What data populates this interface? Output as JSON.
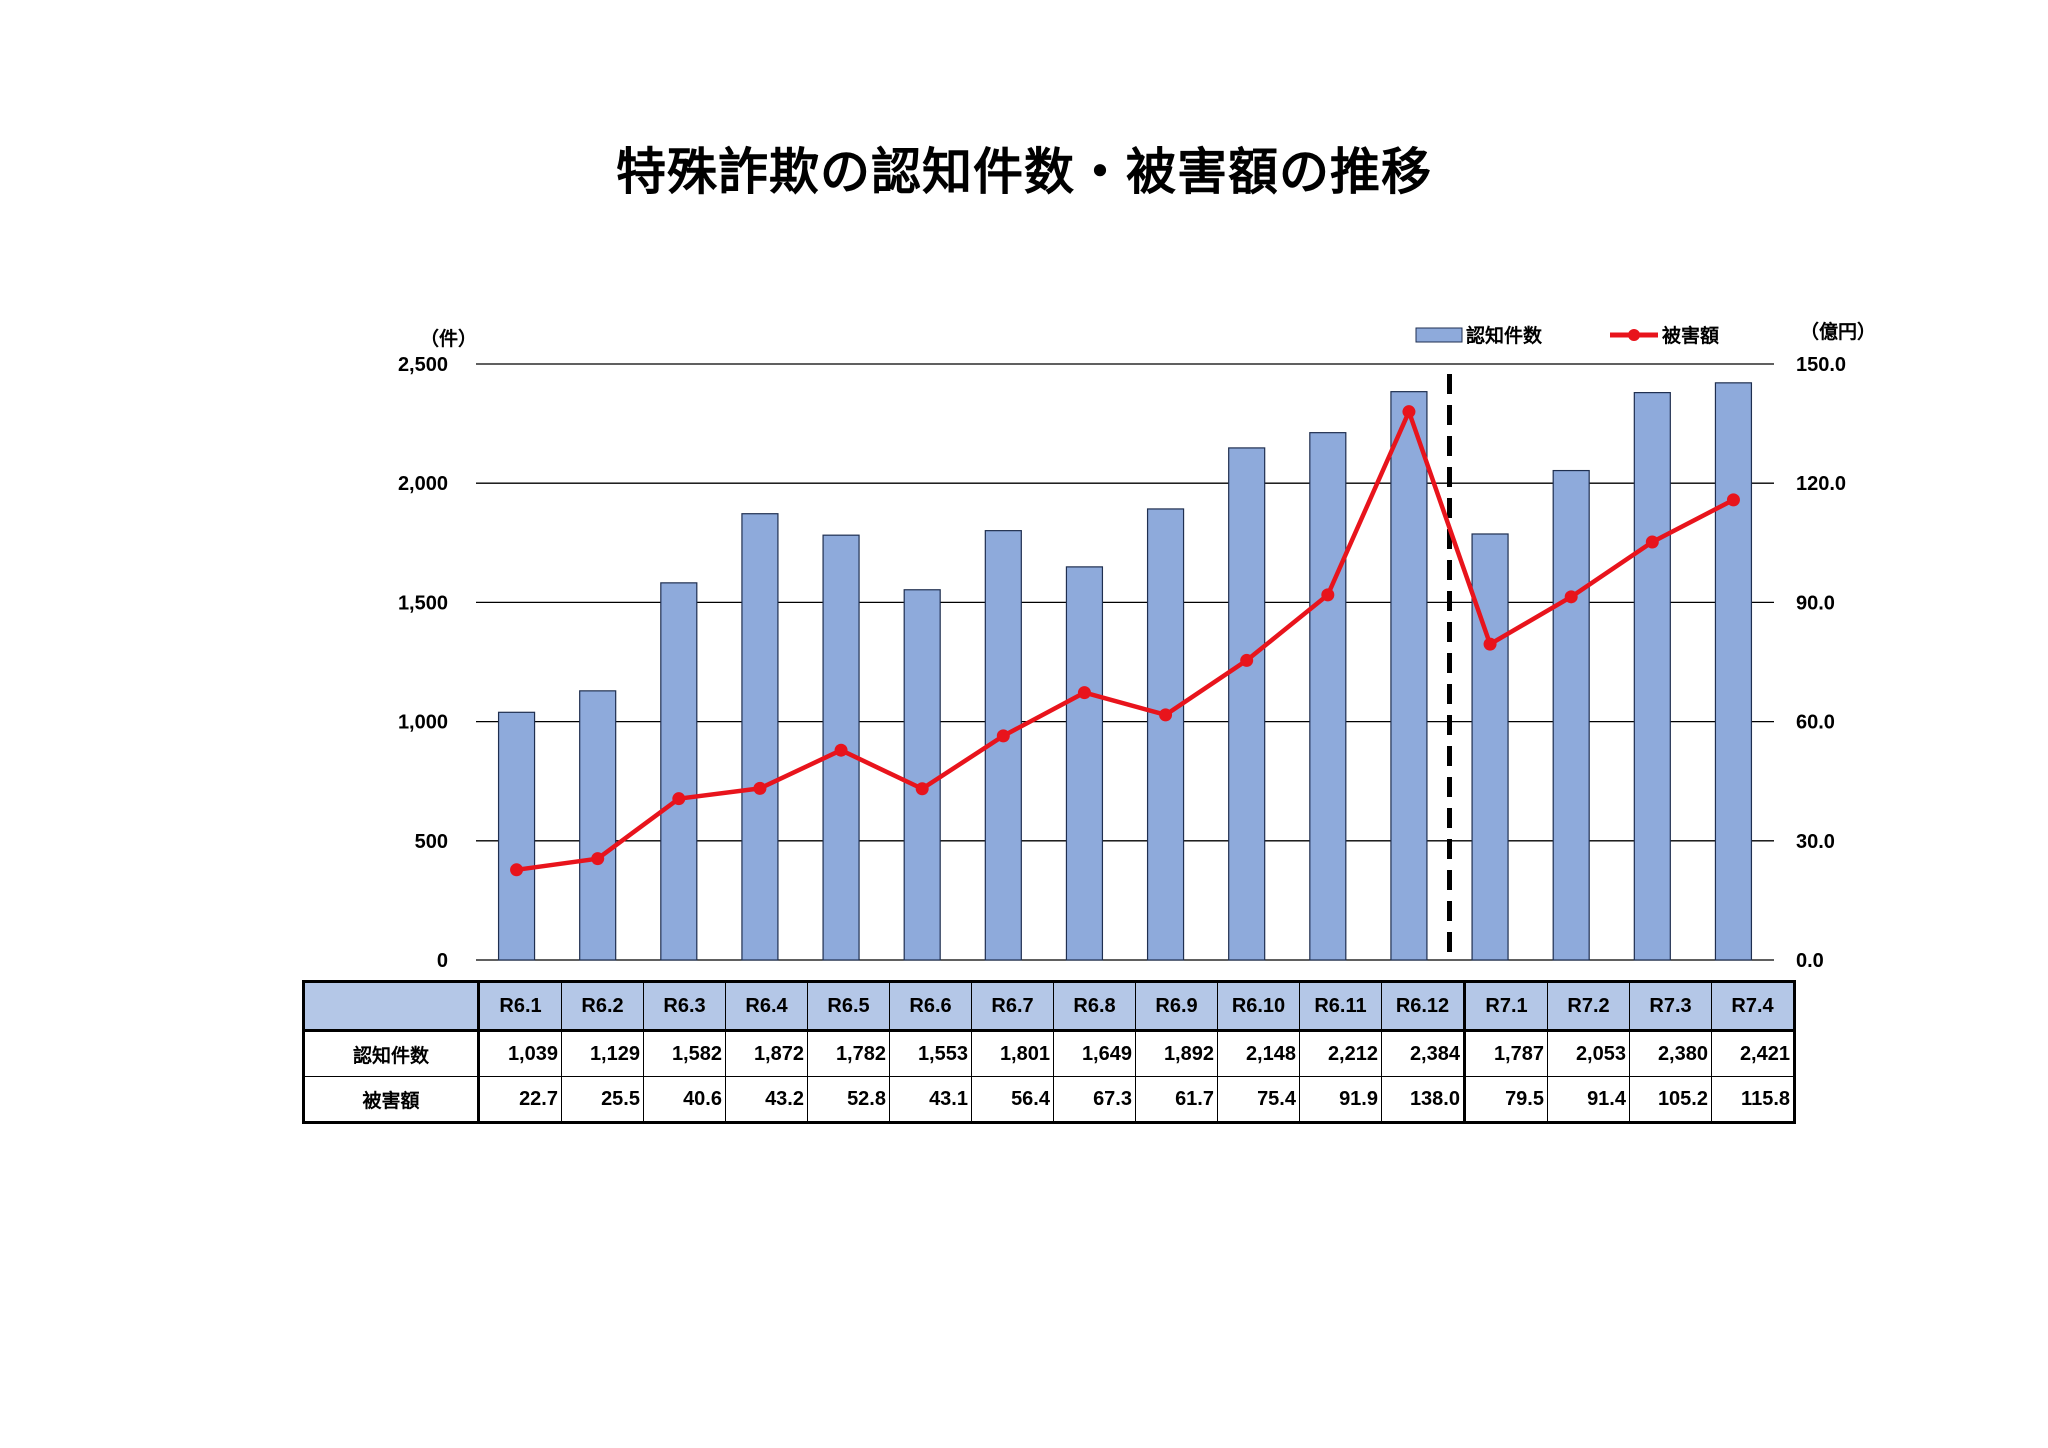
{
  "chart_data": {
    "type": "bar+line",
    "title": "特殊詐欺の認知件数・被害額の推移",
    "categories": [
      "R6.1",
      "R6.2",
      "R6.3",
      "R6.4",
      "R6.5",
      "R6.6",
      "R6.7",
      "R6.8",
      "R6.9",
      "R6.10",
      "R6.11",
      "R6.12",
      "R7.1",
      "R7.2",
      "R7.3",
      "R7.4"
    ],
    "series": [
      {
        "name": "認知件数",
        "type": "bar",
        "axis": "left",
        "color": "#8eaadb",
        "values": [
          1039,
          1129,
          1582,
          1872,
          1782,
          1553,
          1801,
          1649,
          1892,
          2148,
          2212,
          2384,
          1787,
          2053,
          2380,
          2421
        ]
      },
      {
        "name": "被害額",
        "type": "line",
        "axis": "right",
        "color": "#e8141c",
        "values": [
          22.7,
          25.5,
          40.6,
          43.2,
          52.8,
          43.1,
          56.4,
          67.3,
          61.7,
          75.4,
          91.9,
          138.0,
          79.5,
          91.4,
          105.2,
          115.8
        ]
      }
    ],
    "left_axis": {
      "unit": "（件）",
      "ylim": [
        0,
        2500
      ],
      "ticks": [
        "0",
        "500",
        "1,000",
        "1,500",
        "2,000",
        "2,500"
      ]
    },
    "right_axis": {
      "unit": "（億円）",
      "ylim": [
        0,
        150
      ],
      "ticks": [
        "0.0",
        "30.0",
        "60.0",
        "90.0",
        "120.0",
        "150.0"
      ]
    },
    "grid": true,
    "legend": "top-right",
    "divider_after_category": "R6.12"
  },
  "table": {
    "header_label": "",
    "rows": [
      {
        "label": "認知件数",
        "cells": [
          "1,039",
          "1,129",
          "1,582",
          "1,872",
          "1,782",
          "1,553",
          "1,801",
          "1,649",
          "1,892",
          "2,148",
          "2,212",
          "2,384",
          "1,787",
          "2,053",
          "2,380",
          "2,421"
        ]
      },
      {
        "label": "被害額",
        "cells": [
          "22.7",
          "25.5",
          "40.6",
          "43.2",
          "52.8",
          "43.1",
          "56.4",
          "67.3",
          "61.7",
          "75.4",
          "91.9",
          "138.0",
          "79.5",
          "91.4",
          "105.2",
          "115.8"
        ]
      }
    ]
  }
}
